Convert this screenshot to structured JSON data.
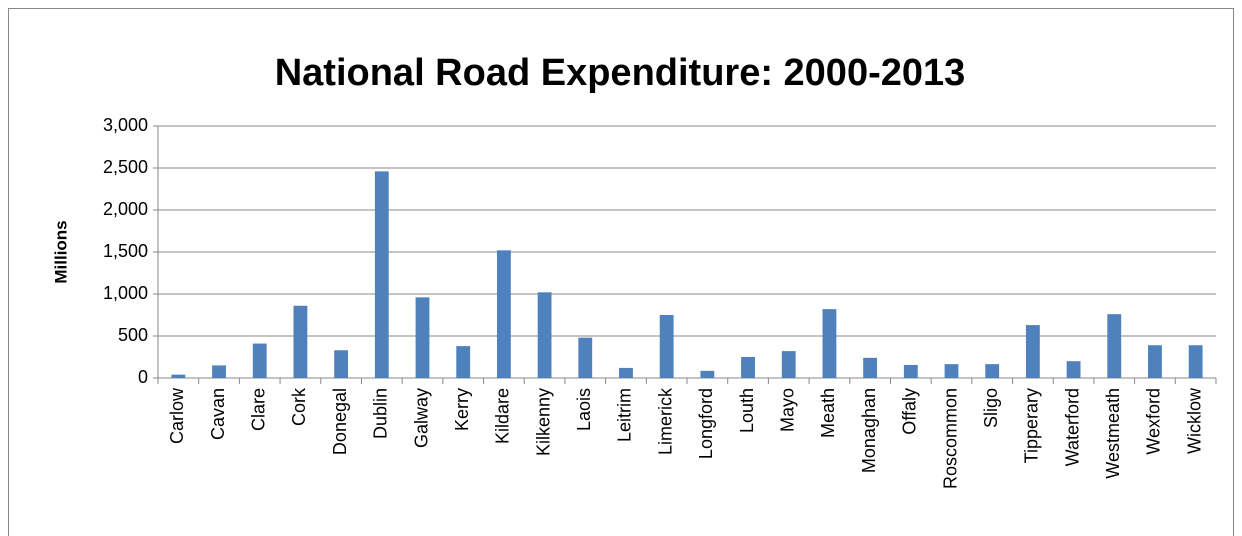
{
  "chart_data": {
    "type": "bar",
    "title": "National Road Expenditure: 2000-2013",
    "y_label": "Millions",
    "categories": [
      "Carlow",
      "Cavan",
      "Clare",
      "Cork",
      "Donegal",
      "Dublin",
      "Galway",
      "Kerry",
      "Kildare",
      "Kilkenny",
      "Laois",
      "Leitrim",
      "Limerick",
      "Longford",
      "Louth",
      "Mayo",
      "Meath",
      "Monaghan",
      "Offaly",
      "Roscommon",
      "Sligo",
      "Tipperary",
      "Waterford",
      "Westmeath",
      "Wexford",
      "Wicklow"
    ],
    "values": [
      40,
      150,
      410,
      860,
      330,
      2460,
      960,
      380,
      1520,
      1020,
      480,
      120,
      750,
      85,
      250,
      320,
      820,
      240,
      155,
      165,
      165,
      630,
      200,
      760,
      390,
      390
    ],
    "color": "#4f81bd",
    "ylim": [
      0,
      3000
    ],
    "yticks": [
      0,
      500,
      {
        "value": 1000,
        "label": "1,000"
      },
      {
        "value": 1500,
        "label": "1,500"
      },
      {
        "value": 2000,
        "label": "2,000"
      },
      {
        "value": 2500,
        "label": "2,500"
      },
      {
        "value": 3000,
        "label": "3,000"
      }
    ],
    "grid": true
  }
}
